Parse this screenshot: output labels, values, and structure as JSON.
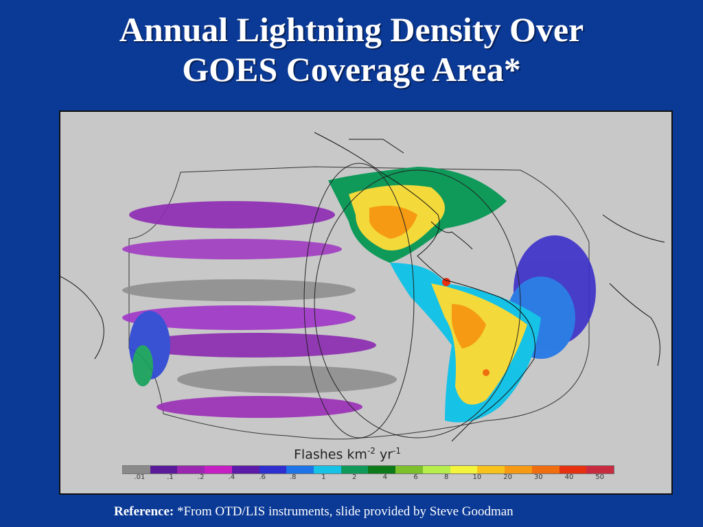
{
  "title": {
    "line1": "Annual Lightning Density Over",
    "line2": "GOES Coverage Area*"
  },
  "map": {
    "projection_outline": "GOES East/West full-disk coverage",
    "legend": {
      "label_main": "Flashes km",
      "exp1": "-2",
      "mid": " yr",
      "exp2": "-1",
      "ticks": [
        ".01",
        ".1",
        ".2",
        ".4",
        ".6",
        ".8",
        "1",
        "2",
        "4",
        "6",
        "8",
        "10",
        "20",
        "30",
        "40",
        "50"
      ],
      "colors": [
        "#8a8a8a",
        "#5a1a9a",
        "#9b27b0",
        "#c61fc3",
        "#5b1aa8",
        "#2f2fcf",
        "#1d74e8",
        "#16c2e6",
        "#0f9a5a",
        "#0c7a18",
        "#7cc02c",
        "#b7ee4c",
        "#f4f43a",
        "#f7c31b",
        "#f59a12",
        "#f06d10",
        "#e63010",
        "#c82a40"
      ]
    }
  },
  "reference": {
    "label": "Reference:",
    "text": " *From OTD/LIS instruments, slide provided by Steve Goodman"
  }
}
